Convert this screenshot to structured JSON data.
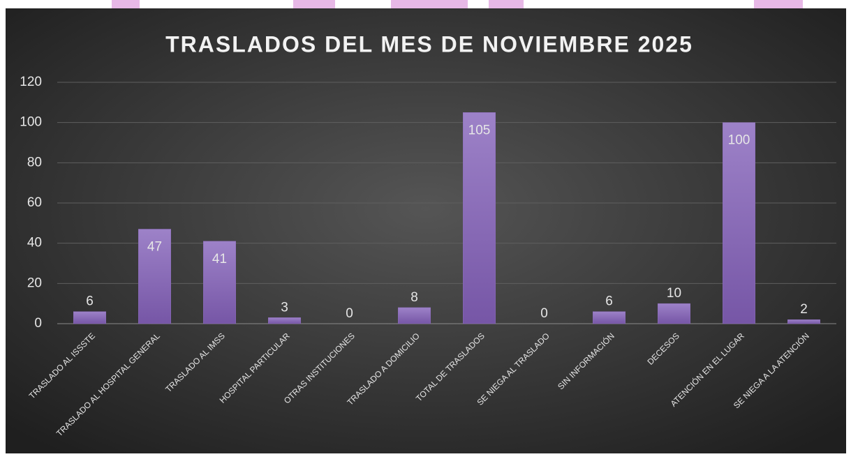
{
  "chart_data": {
    "type": "bar",
    "title": "TRASLADOS DEL MES DE NOVIEMBRE 2025",
    "categories": [
      "TRASLADO AL ISSSTE",
      "TRASLADO AL HOSPITAL GENERAL",
      "TRASLADO AL IMSS",
      "HOSPITAL PARTICULAR",
      "OTRAS INSTITUCIONES",
      "TRASLADO A DOMICILIO",
      "TOTAL DE TRASLADOS",
      "SE NIEGA AL TRASLADO",
      "SIN INFORMACIÓN",
      "DECESOS",
      "ATENCIÓN EN EL LUGAR",
      "SE NIEGA A LA ATENCIÓN"
    ],
    "values": [
      6,
      47,
      41,
      3,
      0,
      8,
      105,
      0,
      6,
      10,
      100,
      2
    ],
    "color": "#8a6bb8",
    "ylim": [
      0,
      120
    ],
    "yticks": [
      0,
      20,
      40,
      60,
      80,
      100,
      120
    ],
    "grid": true
  }
}
